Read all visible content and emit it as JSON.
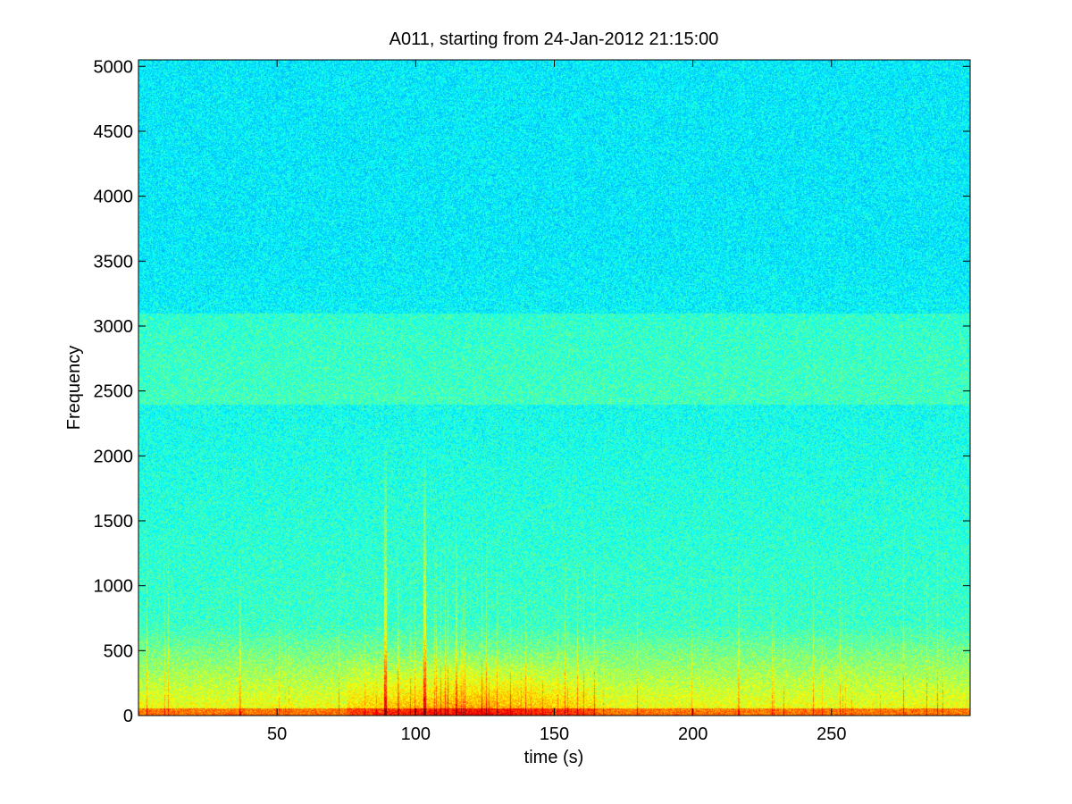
{
  "chart_data": {
    "type": "heatmap",
    "title": "A011, starting from 24-Jan-2012 21:15:00",
    "xlabel": "time (s)",
    "ylabel": "Frequency",
    "xlim": [
      0,
      300
    ],
    "ylim": [
      0,
      5050
    ],
    "x_ticks": [
      50,
      100,
      150,
      200,
      250
    ],
    "y_ticks": [
      0,
      500,
      1000,
      1500,
      2000,
      2500,
      3000,
      3500,
      4000,
      4500,
      5000
    ],
    "grid": false,
    "colormap": "jet",
    "colors": {
      "high": "#ff0000",
      "mid_high": "#ffff00",
      "mid": "#40ffb0",
      "low": "#00eeee"
    },
    "features": {
      "low_frequency_energy_band_max": 700,
      "harmonic_band_range": [
        2600,
        3000
      ],
      "high_activity_time_range": [
        75,
        165
      ],
      "strong_broadband_transients": [
        89,
        103
      ]
    }
  }
}
